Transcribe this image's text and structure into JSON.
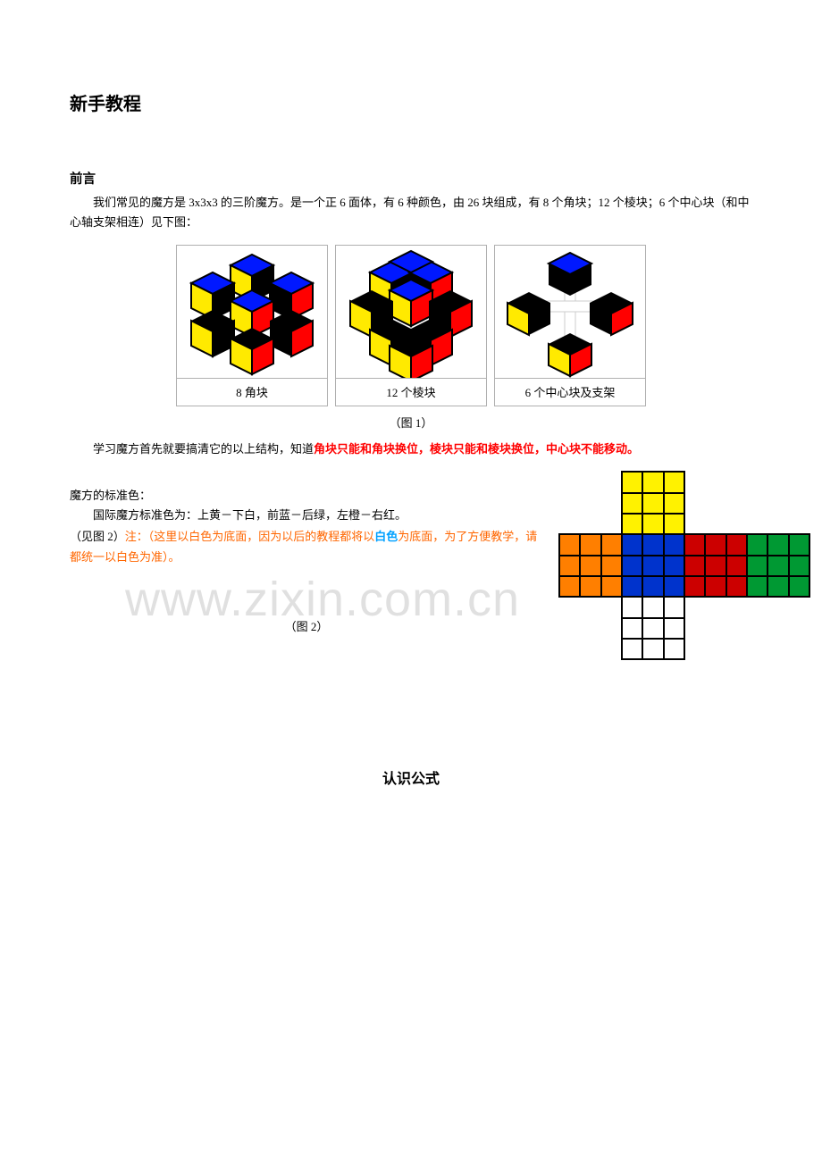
{
  "title": "新手教程",
  "preface": {
    "heading": "前言",
    "p1": "我们常见的魔方是 3x3x3 的三阶魔方。是一个正 6 面体，有 6 种颜色，由 26 块组成，有 8 个角块；12 个棱块；6 个中心块（和中心轴支架相连）见下图：",
    "fig1": {
      "panels": [
        {
          "cap": "8 角块"
        },
        {
          "cap": "12 个棱块"
        },
        {
          "cap": "6 个中心块及支架"
        }
      ],
      "caption": "（图 1）",
      "colors": {
        "top": "#0018ff",
        "left": "#ffea00",
        "right": "#ff0000",
        "body": "#000000",
        "axle": "#ffffff"
      }
    },
    "p2_pre": "学习魔方首先就要搞清它的以上结构，知道",
    "p2_red": "角块只能和角块换位，棱块只能和棱块换位，中心块不能移动。"
  },
  "watermark": "www.zixin.com.cn",
  "std_colors": {
    "lead": "魔方的标准色：",
    "p1": "国际魔方标准色为：上黄－下白，前蓝－后绿，左橙－右红。",
    "note_pre": "（见图 2）",
    "note_orange1": "注：（这里以白色为底面，因为以后的教程都将以",
    "note_blue": "白色",
    "note_orange2": "为底面，为了方便教学，请都统一以白色为准）。",
    "fig2_caption": "（图 2）",
    "net": {
      "U": "#fff200",
      "L": "#ff7f00",
      "F": "#0033cc",
      "R": "#cc0000",
      "B": "#009933",
      "D": "#ffffff",
      "border": "#000000"
    }
  },
  "heading_formula": "认识公式"
}
